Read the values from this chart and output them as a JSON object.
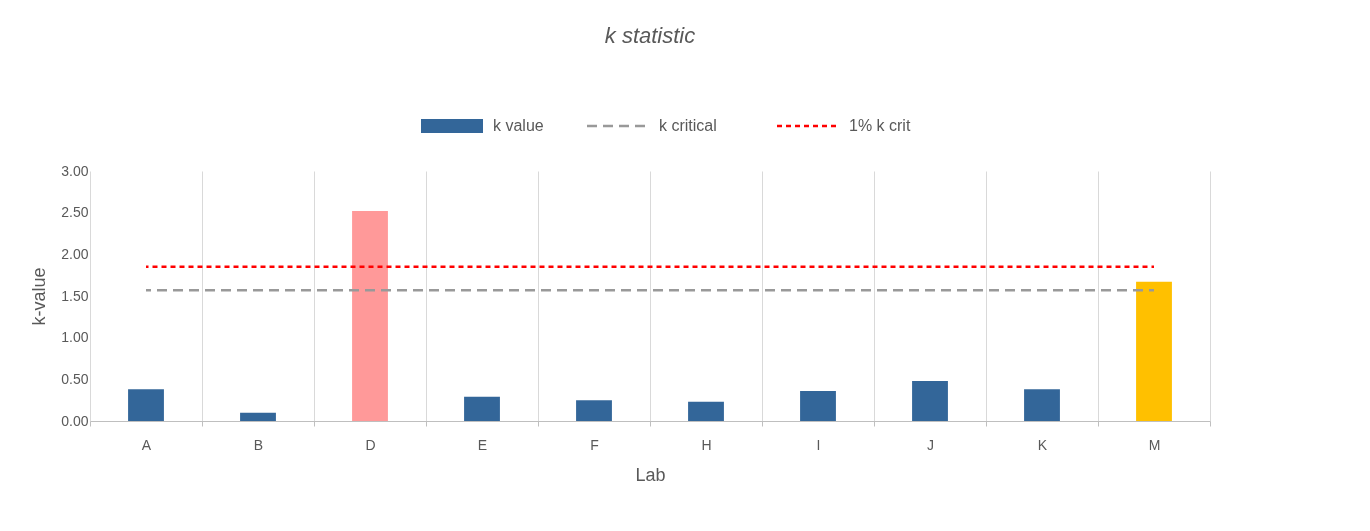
{
  "chart_data": {
    "type": "bar",
    "title": "k statistic",
    "xlabel": "Lab",
    "ylabel": "k-value",
    "categories": [
      "A",
      "B",
      "D",
      "E",
      "F",
      "H",
      "I",
      "J",
      "K",
      "M"
    ],
    "series": [
      {
        "name": "k value",
        "values": [
          0.38,
          0.1,
          2.52,
          0.29,
          0.25,
          0.23,
          0.36,
          0.48,
          0.38,
          1.67
        ],
        "colors": [
          "#336699",
          "#336699",
          "#ff9999",
          "#336699",
          "#336699",
          "#336699",
          "#336699",
          "#336699",
          "#336699",
          "#ffc000"
        ],
        "color": "#336699"
      },
      {
        "name": "k critical",
        "type": "line",
        "color": "#999999",
        "line_style": "dashed",
        "values": [
          1.57,
          1.57,
          1.57,
          1.57,
          1.57,
          1.57,
          1.57,
          1.57,
          1.57,
          1.57
        ]
      },
      {
        "name": "1% k crit",
        "type": "line",
        "color": "#ff0000",
        "line_style": "dotted",
        "values": [
          1.85,
          1.85,
          1.85,
          1.85,
          1.85,
          1.85,
          1.85,
          1.85,
          1.85,
          1.85
        ]
      }
    ],
    "ylim": [
      0,
      3
    ],
    "yticks": [
      {
        "value": 0,
        "label": "0.00"
      },
      {
        "value": 0.5,
        "label": "0.50"
      },
      {
        "value": 1,
        "label": "1.00"
      },
      {
        "value": 1.5,
        "label": "1.50"
      },
      {
        "value": 2,
        "label": "2.00"
      },
      {
        "value": 2.5,
        "label": "2.50"
      },
      {
        "value": 3,
        "label": "3.00"
      }
    ],
    "grid": "x",
    "legend": "top"
  }
}
